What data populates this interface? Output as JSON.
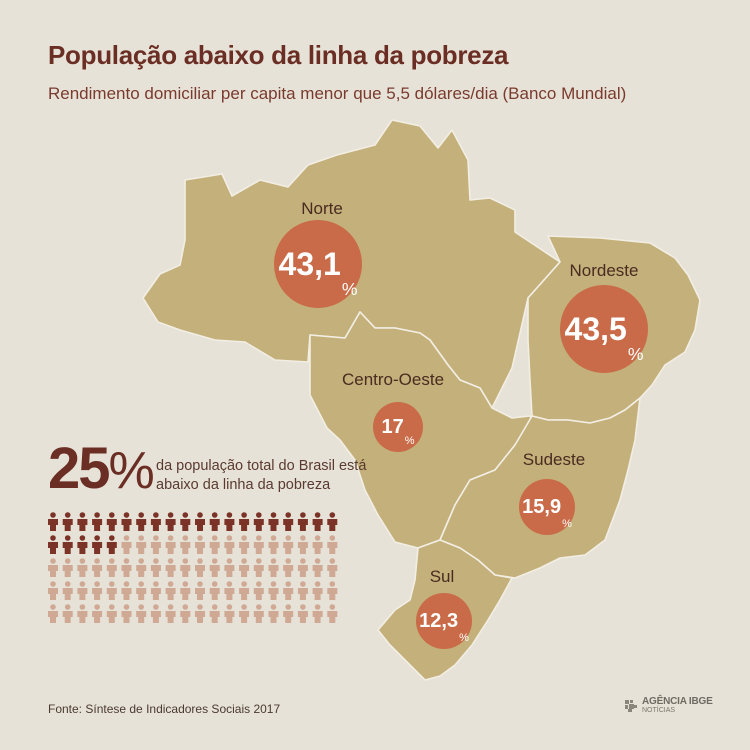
{
  "header": {
    "title": "População abaixo da linha da pobreza",
    "subtitle": "Rendimento domiciliar per capita menor que 5,5 dólares/dia (Banco Mundial)"
  },
  "regions": [
    {
      "name": "Norte",
      "value": "43,1",
      "unit": "%"
    },
    {
      "name": "Nordeste",
      "value": "43,5",
      "unit": "%"
    },
    {
      "name": "Centro-Oeste",
      "value": "17",
      "unit": "%"
    },
    {
      "name": "Sudeste",
      "value": "15,9",
      "unit": "%"
    },
    {
      "name": "Sul",
      "value": "12,3",
      "unit": "%"
    }
  ],
  "total": {
    "value": "25",
    "unit": "%",
    "text": "da população total do Brasil está abaixo da linha da pobreza"
  },
  "pictogram": {
    "icon": "person-icon",
    "filled": 25,
    "total": 100,
    "filled_color": "#7a3326",
    "empty_color": "#cfa994"
  },
  "colors": {
    "map": "#c4b07a",
    "bubble": "#c96b48",
    "title": "#6b2e24"
  },
  "footer": {
    "source": "Fonte: Síntese de Indicadores Sociais 2017",
    "logo_line1": "AGÊNCIA IBGE",
    "logo_line2": "NOTÍCIAS"
  }
}
